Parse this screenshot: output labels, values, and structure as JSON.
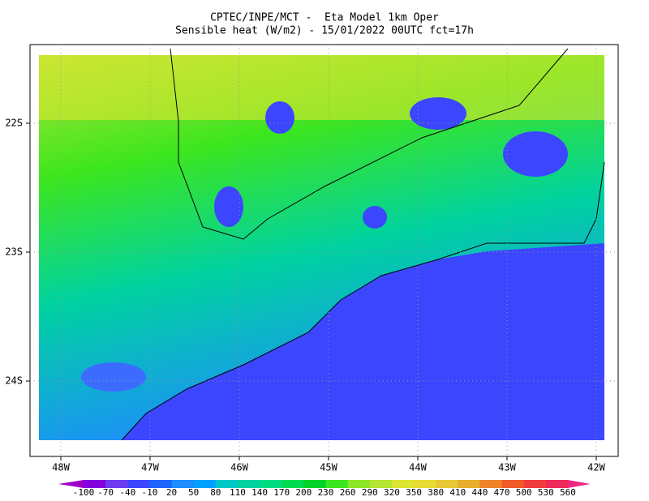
{
  "header": {
    "title": "CPTEC/INPE/MCT -  Eta Model 1km Oper",
    "subtitle": "Sensible heat (W/m2) - 15/01/2022 00UTC fct=17h"
  },
  "axes": {
    "x_labels": [
      "48W",
      "47W",
      "46W",
      "45W",
      "44W",
      "43W",
      "42W"
    ],
    "y_labels": [
      "22S",
      "23S",
      "24S"
    ]
  },
  "colorbar": {
    "labels": [
      -100,
      -70,
      -40,
      -10,
      20,
      50,
      80,
      110,
      140,
      170,
      200,
      230,
      260,
      290,
      320,
      350,
      380,
      410,
      440,
      470,
      500,
      530,
      560
    ],
    "colors": [
      "#a000c8",
      "#8200dc",
      "#6e3cf0",
      "#3c46ff",
      "#1e64ff",
      "#1e8cff",
      "#00a0ff",
      "#00c8c8",
      "#00d2a0",
      "#00dc82",
      "#00dc50",
      "#00d228",
      "#3ce61e",
      "#8ce628",
      "#b4e632",
      "#dce632",
      "#e6dc32",
      "#e6c832",
      "#e6af2d",
      "#f08228",
      "#f05a28",
      "#f03c3c",
      "#f0285a",
      "#f02882"
    ]
  }
}
